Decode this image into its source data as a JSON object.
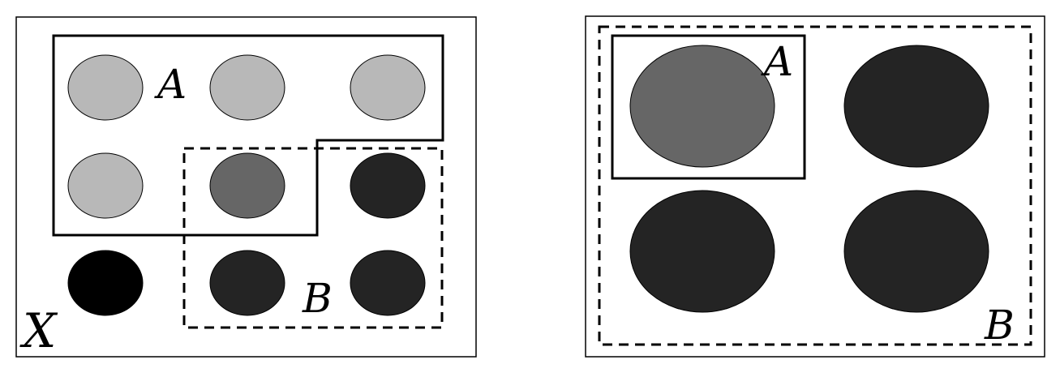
{
  "colors": {
    "light": "#b8b8b8",
    "mid": "#666666",
    "dark": "#242424",
    "black": "#000000",
    "outline": "#000000",
    "background": "#ffffff"
  },
  "left_panel": {
    "label_a": "A",
    "label_b": "B",
    "label_x": "X",
    "circles": [
      "light",
      "light",
      "light",
      "light",
      "mid",
      "dark",
      "black",
      "dark",
      "dark"
    ]
  },
  "right_panel": {
    "label_a": "A",
    "label_b": "B",
    "circles": [
      "mid",
      "dark",
      "dark",
      "dark"
    ]
  }
}
